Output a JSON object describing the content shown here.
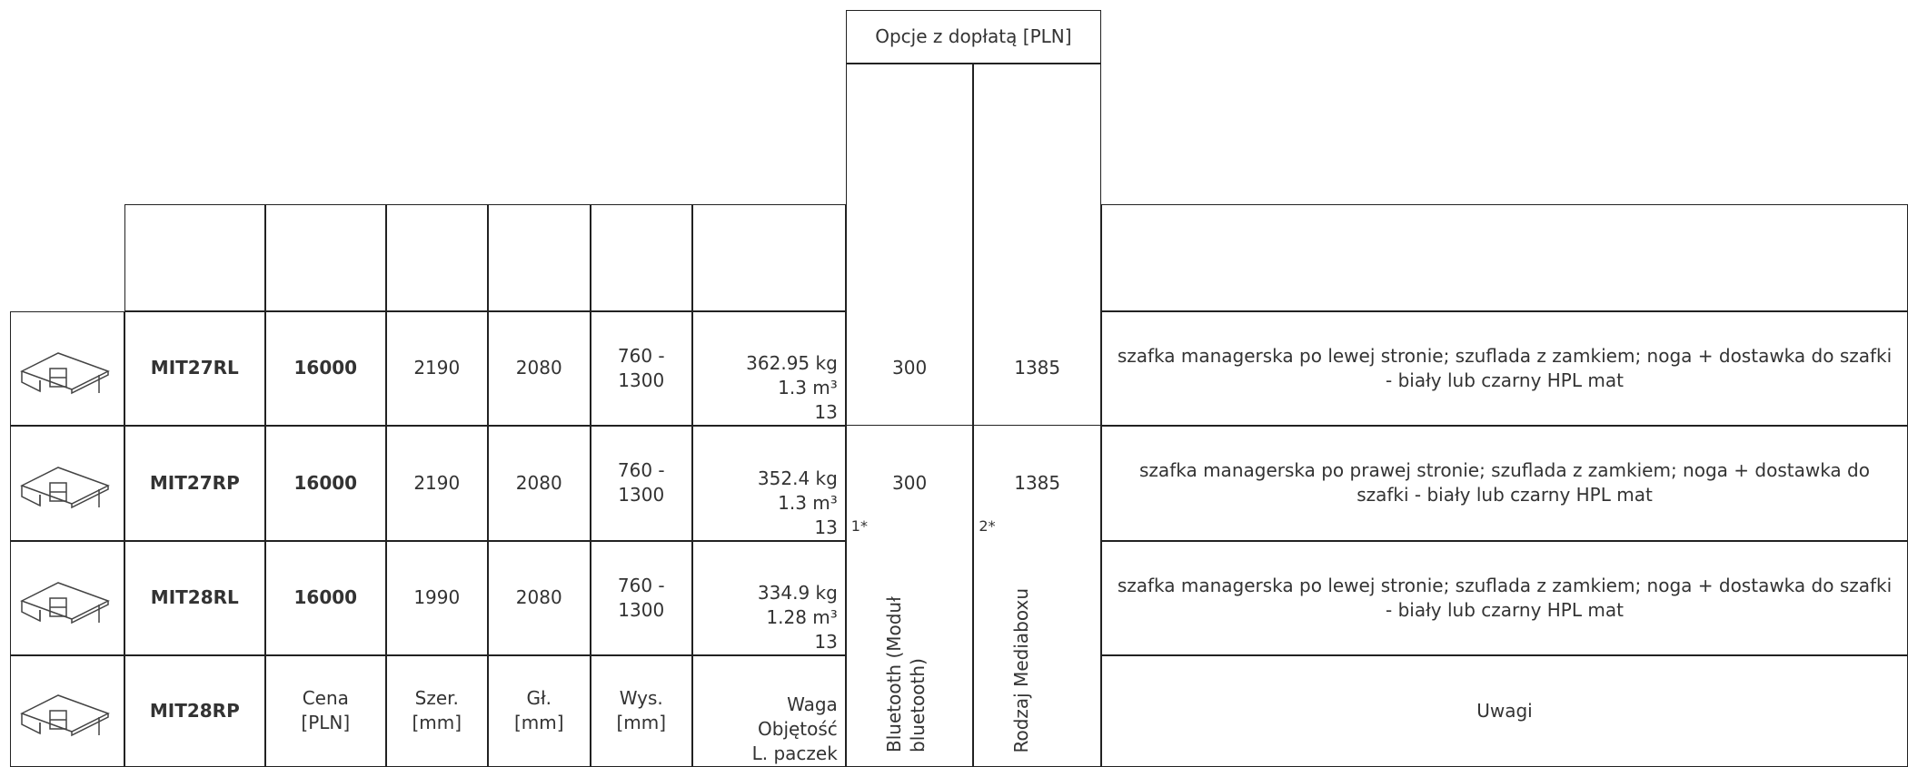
{
  "header": {
    "options_title": "Opcje z dopłatą [PLN]"
  },
  "rows": [
    {
      "model": "MIT27RL",
      "price": "16000",
      "width": "2190",
      "depth": "2080",
      "height": "760 - 1300",
      "weight": "362.95 kg",
      "volume": "1.3 m³",
      "packages": "13",
      "bluetooth": "300",
      "mediabox": "1385",
      "notes": "szafka managerska po lewej stronie; szuflada z zamkiem; noga + dostawka do szafki - biały lub czarny HPL mat"
    },
    {
      "model": "MIT27RP",
      "price": "16000",
      "width": "2190",
      "depth": "2080",
      "height": "760 - 1300",
      "weight": "352.4 kg",
      "volume": "1.3 m³",
      "packages": "13",
      "bluetooth": "300",
      "mediabox": "1385",
      "notes": "szafka managerska po prawej stronie; szuflada z zamkiem; noga + dostawka do szafki - biały lub czarny HPL mat"
    },
    {
      "model": "MIT28RL",
      "price": "16000",
      "width": "1990",
      "depth": "2080",
      "height": "760 - 1300",
      "weight": "334.9 kg",
      "volume": "1.28 m³",
      "packages": "13",
      "notes": "szafka managerska po lewej stronie; szuflada z zamkiem; noga + dostawka do szafki - biały lub czarny HPL mat"
    }
  ],
  "last_row": {
    "model": "MIT28RP"
  },
  "column_labels": {
    "price": "Cena [PLN]",
    "width": "Szer. [mm]",
    "depth": "Gł. [mm]",
    "height": "Wys. [mm]",
    "weight": "Waga",
    "volume": "Objętość",
    "packages": "L. paczek",
    "bluetooth": "Bluetooth (Moduł bluetooth)",
    "mediabox": "Rodzaj Mediaboxu",
    "notes": "Uwagi"
  },
  "footnotes": [
    "1*",
    "2*"
  ]
}
